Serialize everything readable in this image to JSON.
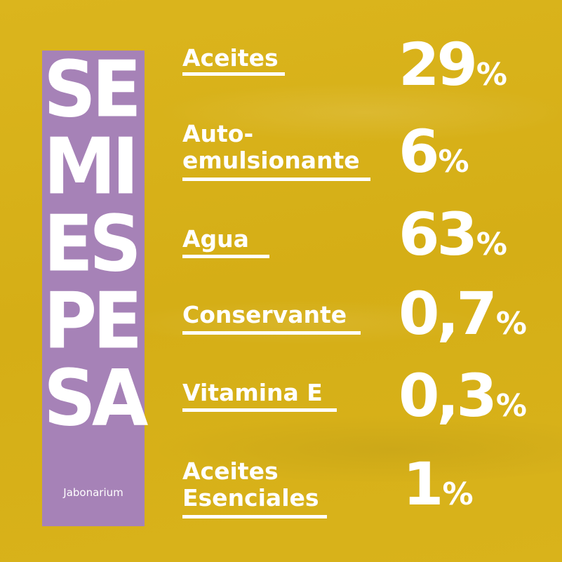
{
  "title_letters": [
    "SE",
    "MI",
    "ES",
    "PE",
    "SA"
  ],
  "brand": "Jabonarium",
  "ingredients": [
    {
      "label_lines": [
        "Aceites"
      ],
      "value": "29",
      "unit": "%"
    },
    {
      "label_lines": [
        "Auto-",
        "emulsionante"
      ],
      "value": "6",
      "unit": "%"
    },
    {
      "label_lines": [
        "Agua"
      ],
      "value": "63",
      "unit": "%"
    },
    {
      "label_lines": [
        "Conservante"
      ],
      "value": "0,7",
      "unit": "%"
    },
    {
      "label_lines": [
        "Vitamina E"
      ],
      "value": "0,3",
      "unit": "%"
    },
    {
      "label_lines": [
        "Aceites",
        "Esenciales"
      ],
      "value": "1",
      "unit": "%"
    }
  ],
  "colors": {
    "background": "#d8b21a",
    "band": "#a682b7",
    "text": "#ffffff"
  }
}
